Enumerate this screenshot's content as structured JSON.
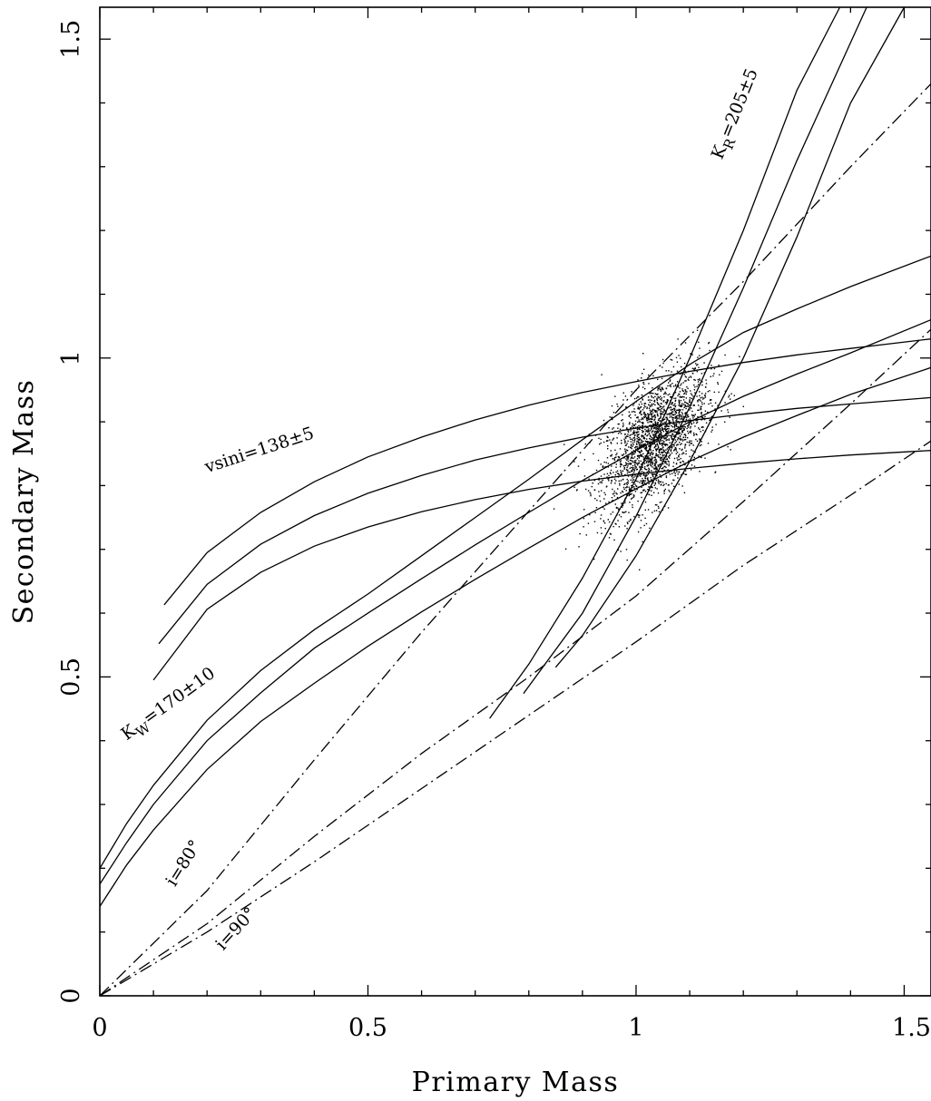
{
  "chart_data": {
    "type": "line",
    "title": "",
    "xlabel": "Primary Mass",
    "ylabel": "Secondary Mass",
    "xlim": [
      0,
      1.55
    ],
    "ylim": [
      0,
      1.55
    ],
    "grid": false,
    "x_ticks": [
      {
        "value": 0,
        "label": "0"
      },
      {
        "value": 0.5,
        "label": "0.5"
      },
      {
        "value": 1,
        "label": "1"
      },
      {
        "value": 1.5,
        "label": "1.5"
      }
    ],
    "y_ticks": [
      {
        "value": 0,
        "label": "0"
      },
      {
        "value": 0.5,
        "label": "0.5"
      },
      {
        "value": 1,
        "label": "1"
      },
      {
        "value": 1.5,
        "label": "1.5"
      }
    ],
    "annotations": [
      {
        "text": "vsini=138±5",
        "x": 0.2,
        "y": 0.82
      },
      {
        "text": "K_W=170±10",
        "x": 0.05,
        "y": 0.4
      },
      {
        "text": "K_R=205±5",
        "x": 1.16,
        "y": 1.31
      },
      {
        "text": "i=80°",
        "x": 0.14,
        "y": 0.17
      },
      {
        "text": "i=90°",
        "x": 0.23,
        "y": 0.07
      }
    ],
    "series": [
      {
        "style": "solid",
        "x": [
          0.12,
          0.2,
          0.3,
          0.4,
          0.5,
          0.6,
          0.7,
          0.8,
          0.9,
          1.0,
          1.1,
          1.2,
          1.3,
          1.4,
          1.55
        ],
        "y": [
          0.613,
          0.695,
          0.758,
          0.806,
          0.845,
          0.876,
          0.903,
          0.926,
          0.946,
          0.963,
          0.979,
          0.993,
          1.005,
          1.015,
          1.03
        ]
      },
      {
        "style": "solid",
        "x": [
          0.11,
          0.2,
          0.3,
          0.4,
          0.5,
          0.6,
          0.7,
          0.8,
          0.9,
          1.0,
          1.1,
          1.2,
          1.3,
          1.4,
          1.55
        ],
        "y": [
          0.552,
          0.645,
          0.708,
          0.753,
          0.788,
          0.816,
          0.84,
          0.859,
          0.876,
          0.89,
          0.902,
          0.912,
          0.921,
          0.928,
          0.938
        ]
      },
      {
        "style": "solid",
        "x": [
          0.1,
          0.2,
          0.3,
          0.4,
          0.5,
          0.6,
          0.7,
          0.8,
          0.9,
          1.0,
          1.1,
          1.2,
          1.3,
          1.4,
          1.55
        ],
        "y": [
          0.495,
          0.606,
          0.664,
          0.705,
          0.735,
          0.759,
          0.778,
          0.794,
          0.807,
          0.818,
          0.827,
          0.835,
          0.842,
          0.848,
          0.855
        ]
      },
      {
        "style": "solid",
        "x": [
          0,
          0.05,
          0.1,
          0.2,
          0.3,
          0.4,
          0.5,
          0.6,
          0.7,
          0.8,
          0.9,
          1.0,
          1.1,
          1.2,
          1.3,
          1.4,
          1.55
        ],
        "y": [
          0.2,
          0.27,
          0.33,
          0.432,
          0.51,
          0.574,
          0.63,
          0.69,
          0.75,
          0.81,
          0.872,
          0.932,
          0.99,
          1.04,
          1.077,
          1.112,
          1.16
        ]
      },
      {
        "style": "solid",
        "x": [
          0,
          0.05,
          0.1,
          0.2,
          0.3,
          0.4,
          0.5,
          0.6,
          0.7,
          0.8,
          0.9,
          1.0,
          1.1,
          1.2,
          1.3,
          1.4,
          1.55
        ],
        "y": [
          0.175,
          0.24,
          0.3,
          0.4,
          0.475,
          0.545,
          0.6,
          0.654,
          0.707,
          0.758,
          0.808,
          0.855,
          0.9,
          0.94,
          0.975,
          1.008,
          1.06
        ]
      },
      {
        "style": "solid",
        "x": [
          0,
          0.05,
          0.1,
          0.2,
          0.3,
          0.4,
          0.5,
          0.6,
          0.7,
          0.8,
          0.9,
          1.0,
          1.1,
          1.2,
          1.3,
          1.4,
          1.55
        ],
        "y": [
          0.14,
          0.205,
          0.26,
          0.355,
          0.43,
          0.49,
          0.548,
          0.602,
          0.653,
          0.702,
          0.75,
          0.795,
          0.838,
          0.876,
          0.91,
          0.943,
          0.985
        ]
      },
      {
        "style": "solid",
        "x": [
          0.727,
          0.8,
          0.9,
          1.0,
          1.1,
          1.2,
          1.3,
          1.38
        ],
        "y": [
          0.435,
          0.52,
          0.655,
          0.81,
          1.0,
          1.2,
          1.42,
          1.55
        ]
      },
      {
        "style": "solid",
        "x": [
          0.79,
          0.9,
          1.0,
          1.1,
          1.2,
          1.3,
          1.43
        ],
        "y": [
          0.474,
          0.6,
          0.752,
          0.923,
          1.11,
          1.31,
          1.55
        ]
      },
      {
        "style": "solid",
        "x": [
          0.85,
          0.9,
          1.0,
          1.1,
          1.2,
          1.3,
          1.4,
          1.5
        ],
        "y": [
          0.515,
          0.565,
          0.69,
          0.838,
          1.0,
          1.19,
          1.4,
          1.55
        ]
      },
      {
        "style": "dashdot",
        "x": [
          0,
          0.2,
          0.4,
          0.6,
          0.8,
          1.0,
          1.2,
          1.4,
          1.55
        ],
        "y": [
          0,
          0.165,
          0.37,
          0.57,
          0.76,
          0.95,
          1.12,
          1.3,
          1.43
        ]
      },
      {
        "style": "dashdot",
        "x": [
          0,
          0.2,
          0.4,
          0.6,
          0.8,
          1.0,
          1.2,
          1.4,
          1.55
        ],
        "y": [
          0,
          0.113,
          0.25,
          0.38,
          0.5,
          0.627,
          0.775,
          0.928,
          1.045
        ]
      },
      {
        "style": "dashdot",
        "x": [
          0,
          0.2,
          0.4,
          0.6,
          0.8,
          1.0,
          1.2,
          1.4,
          1.55
        ],
        "y": [
          0,
          0.1,
          0.21,
          0.325,
          0.44,
          0.555,
          0.675,
          0.785,
          0.87
        ]
      }
    ],
    "scatter_cloud": {
      "center": [
        1.035,
        0.87
      ],
      "sd": [
        0.05,
        0.055
      ],
      "n": 2200
    }
  }
}
